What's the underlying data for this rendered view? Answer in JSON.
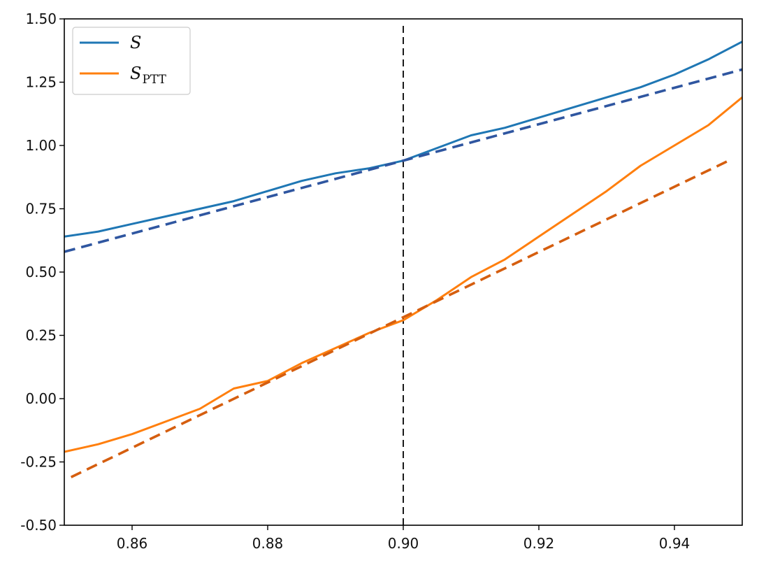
{
  "chart_data": {
    "type": "line",
    "title": "",
    "xlabel": "",
    "ylabel": "",
    "xlim": [
      0.85,
      0.95
    ],
    "ylim": [
      -0.5,
      1.5
    ],
    "xticks": [
      0.86,
      0.88,
      0.9,
      0.92,
      0.94
    ],
    "xtick_labels": [
      "0.86",
      "0.88",
      "0.90",
      "0.92",
      "0.94"
    ],
    "yticks": [
      -0.5,
      -0.25,
      0.0,
      0.25,
      0.5,
      0.75,
      1.0,
      1.25,
      1.5
    ],
    "ytick_labels": [
      "-0.50",
      "-0.25",
      "0.00",
      "0.25",
      "0.50",
      "0.75",
      "1.00",
      "1.25",
      "1.50"
    ],
    "grid": false,
    "legend_position": "top-left",
    "series": [
      {
        "name": "S",
        "legend_main": "S",
        "legend_sub": "",
        "style": "solid",
        "color": "#1f77b4",
        "x": [
          0.85,
          0.855,
          0.86,
          0.865,
          0.87,
          0.875,
          0.88,
          0.885,
          0.89,
          0.895,
          0.9,
          0.905,
          0.91,
          0.915,
          0.92,
          0.925,
          0.93,
          0.935,
          0.94,
          0.945,
          0.95
        ],
        "y": [
          0.64,
          0.66,
          0.69,
          0.72,
          0.75,
          0.78,
          0.82,
          0.86,
          0.89,
          0.91,
          0.94,
          0.99,
          1.04,
          1.07,
          1.11,
          1.15,
          1.19,
          1.23,
          1.28,
          1.34,
          1.41
        ]
      },
      {
        "name": "S_PTT",
        "legend_main": "S",
        "legend_sub": "PTT",
        "style": "solid",
        "color": "#ff7f0e",
        "x": [
          0.85,
          0.855,
          0.86,
          0.865,
          0.87,
          0.875,
          0.88,
          0.885,
          0.89,
          0.895,
          0.9,
          0.905,
          0.91,
          0.915,
          0.92,
          0.925,
          0.93,
          0.935,
          0.94,
          0.945,
          0.95
        ],
        "y": [
          -0.21,
          -0.18,
          -0.14,
          -0.09,
          -0.04,
          0.04,
          0.07,
          0.14,
          0.2,
          0.26,
          0.31,
          0.39,
          0.48,
          0.55,
          0.64,
          0.73,
          0.82,
          0.92,
          1.0,
          1.08,
          1.19
        ]
      },
      {
        "name": "",
        "style": "dashed",
        "color": "#2f56a0",
        "x": [
          0.85,
          0.95
        ],
        "y": [
          0.58,
          1.3
        ]
      },
      {
        "name": "",
        "style": "dashed",
        "color": "#d55e0f",
        "x": [
          0.851,
          0.948
        ],
        "y": [
          -0.31,
          0.94
        ]
      }
    ],
    "annotations": [
      {
        "type": "vline",
        "x": 0.9,
        "style": "dashed",
        "color": "#000000"
      }
    ]
  }
}
